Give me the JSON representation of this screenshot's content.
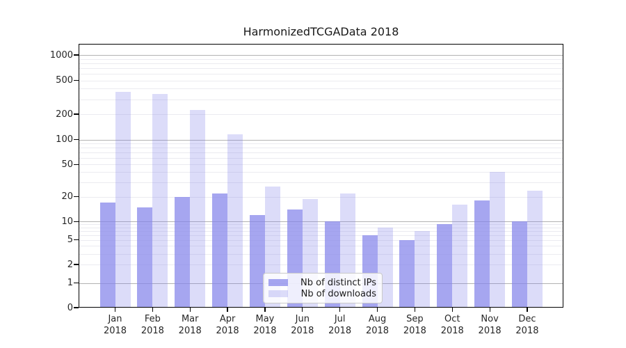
{
  "figure": {
    "title": "HarmonizedTCGAData 2018"
  },
  "chart_data": {
    "type": "bar",
    "title": "HarmonizedTCGAData 2018",
    "categories": [
      "Jan 2018",
      "Feb 2018",
      "Mar 2018",
      "Apr 2018",
      "May 2018",
      "Jun 2018",
      "Jul 2018",
      "Aug 2018",
      "Sep 2018",
      "Oct 2018",
      "Nov 2018",
      "Dec 2018"
    ],
    "series": [
      {
        "name": "Nb of distinct IPs",
        "fill": "rgba(131,131,234,0.72)",
        "values": [
          17,
          15,
          20,
          22,
          12,
          14,
          10,
          6,
          5,
          9,
          18,
          10
        ]
      },
      {
        "name": "Nb of downloads",
        "fill": "rgba(131,131,234,0.28)",
        "values": [
          365,
          348,
          225,
          115,
          27,
          19,
          22,
          8,
          7,
          16,
          40,
          24
        ]
      }
    ],
    "xlabel": "",
    "ylabel": "",
    "yscale": "symlog",
    "ylim": [
      0,
      1350
    ],
    "y_ticks": [
      0,
      1,
      2,
      5,
      10,
      20,
      50,
      100,
      200,
      500,
      1000
    ],
    "y_major_gridlines": [
      1,
      10,
      100,
      1000
    ],
    "grid": true,
    "legend_position": "lower center (inside plot)"
  },
  "colors": {
    "bar_base": "#8383ea",
    "bar_distinct_ips_rendered": "#a6a6ef",
    "bar_downloads_rendered": "#dcdcf9",
    "major_grid": "#b2b2b2",
    "minor_grid": "#ebebf0",
    "axis": "#000000",
    "text": "#262626"
  }
}
